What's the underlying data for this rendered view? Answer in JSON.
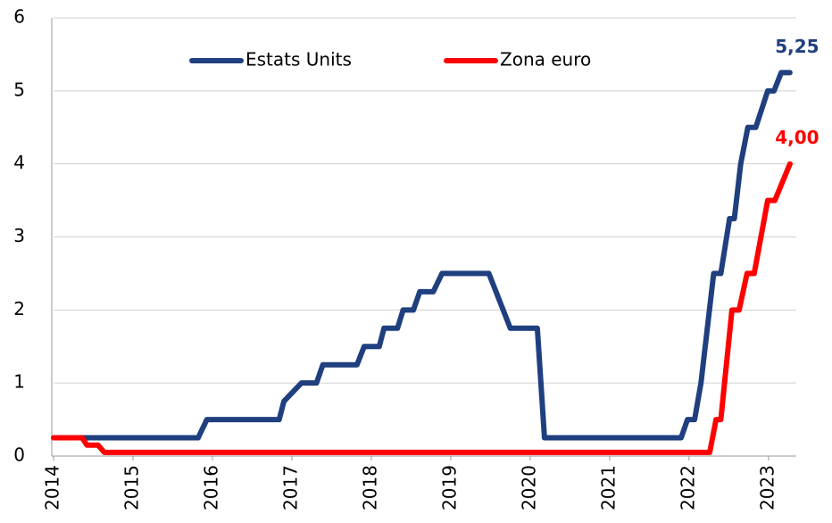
{
  "chart_data": {
    "type": "line",
    "xlim": [
      2014,
      2023.35
    ],
    "xticks": [
      2014,
      2015,
      2016,
      2017,
      2018,
      2019,
      2020,
      2021,
      2022,
      2023
    ],
    "ylim": [
      0,
      6
    ],
    "yticks": [
      0,
      1,
      2,
      3,
      4,
      5,
      6
    ],
    "grid": true,
    "legend": "top",
    "series": [
      {
        "name": "Estats Units",
        "color": "#1f3f7f",
        "end_label": "5,25",
        "x": [
          2014,
          2015.82,
          2015.93,
          2016.84,
          2016.9,
          2017.12,
          2017.31,
          2017.39,
          2017.82,
          2017.91,
          2018.1,
          2018.16,
          2018.33,
          2018.4,
          2018.53,
          2018.61,
          2018.78,
          2018.89,
          2019.48,
          2019.75,
          2020.09,
          2020.18,
          2021.9,
          2021.98,
          2022.07,
          2022.15,
          2022.31,
          2022.4,
          2022.51,
          2022.57,
          2022.65,
          2022.74,
          2022.84,
          2022.99,
          2023.07,
          2023.16,
          2023.27
        ],
        "values": [
          0.25,
          0.25,
          0.5,
          0.5,
          0.75,
          1.0,
          1.0,
          1.25,
          1.25,
          1.5,
          1.5,
          1.75,
          1.75,
          2.0,
          2.0,
          2.25,
          2.25,
          2.5,
          2.5,
          1.75,
          1.75,
          0.25,
          0.25,
          0.5,
          0.5,
          1.0,
          2.5,
          2.5,
          3.25,
          3.25,
          4.0,
          4.5,
          4.5,
          5.0,
          5.0,
          5.25,
          5.25
        ]
      },
      {
        "name": "Zona euro",
        "color": "#ff0000",
        "end_label": "4,00",
        "x": [
          2014,
          2014.36,
          2014.42,
          2014.56,
          2014.64,
          2022.26,
          2022.34,
          2022.4,
          2022.54,
          2022.63,
          2022.73,
          2022.82,
          2022.99,
          2023.08,
          2023.27
        ],
        "values": [
          0.25,
          0.25,
          0.15,
          0.15,
          0.05,
          0.05,
          0.5,
          0.5,
          2.0,
          2.0,
          2.5,
          2.5,
          3.5,
          3.5,
          4.0
        ]
      }
    ]
  }
}
